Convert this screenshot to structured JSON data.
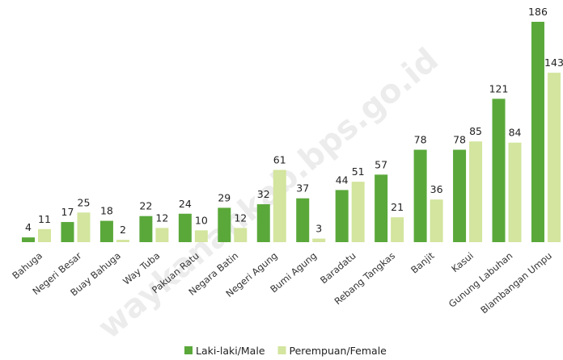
{
  "chart_data": {
    "type": "bar",
    "categories": [
      "Bahuga",
      "Negeri Besar",
      "Buay Bahuga",
      "Way Tuba",
      "Pakuan Ratu",
      "Negara Batin",
      "Negeri Agung",
      "Bumi Agung",
      "Baradatu",
      "Rebang Tangkas",
      "Banjit",
      "Kasui",
      "Gunung Labuhan",
      "Blambangan Umpu"
    ],
    "series": [
      {
        "name": "Laki-laki/Male",
        "color": "#5aa83a",
        "values": [
          4,
          17,
          18,
          22,
          24,
          29,
          32,
          37,
          44,
          57,
          78,
          78,
          121,
          186
        ]
      },
      {
        "name": "Perempuan/Female",
        "color": "#d3e59e",
        "values": [
          11,
          25,
          2,
          12,
          10,
          12,
          61,
          3,
          51,
          21,
          36,
          85,
          84,
          143
        ]
      }
    ],
    "legend": "bottom",
    "watermark": "waykanankab.bps.go.id"
  }
}
